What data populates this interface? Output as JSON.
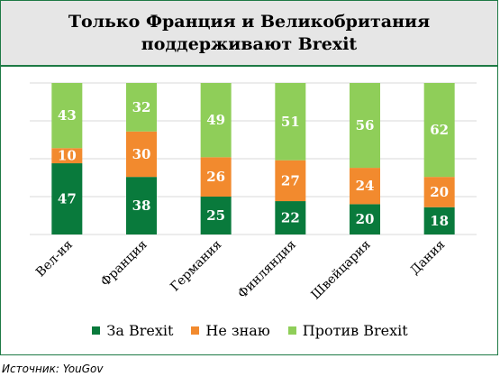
{
  "title": {
    "line1": "Только Франция и Великобритания",
    "line2": "поддерживают Brexit"
  },
  "source": "Источник: YouGov",
  "chart_data": {
    "type": "bar",
    "stacked": true,
    "categories": [
      "Вел-ия",
      "Франция",
      "Германия",
      "Финляндия",
      "Швейцария",
      "Дания"
    ],
    "series": [
      {
        "name": "За Brexit",
        "color": "#097a3c",
        "values": [
          47,
          38,
          25,
          22,
          20,
          18
        ]
      },
      {
        "name": "Не знаю",
        "color": "#f28a2e",
        "values": [
          10,
          30,
          26,
          27,
          24,
          20
        ]
      },
      {
        "name": "Против Brexit",
        "color": "#8fce59",
        "values": [
          43,
          32,
          49,
          51,
          56,
          62
        ]
      }
    ],
    "ylim": [
      0,
      100
    ],
    "grid": true,
    "legend": "bottom"
  }
}
